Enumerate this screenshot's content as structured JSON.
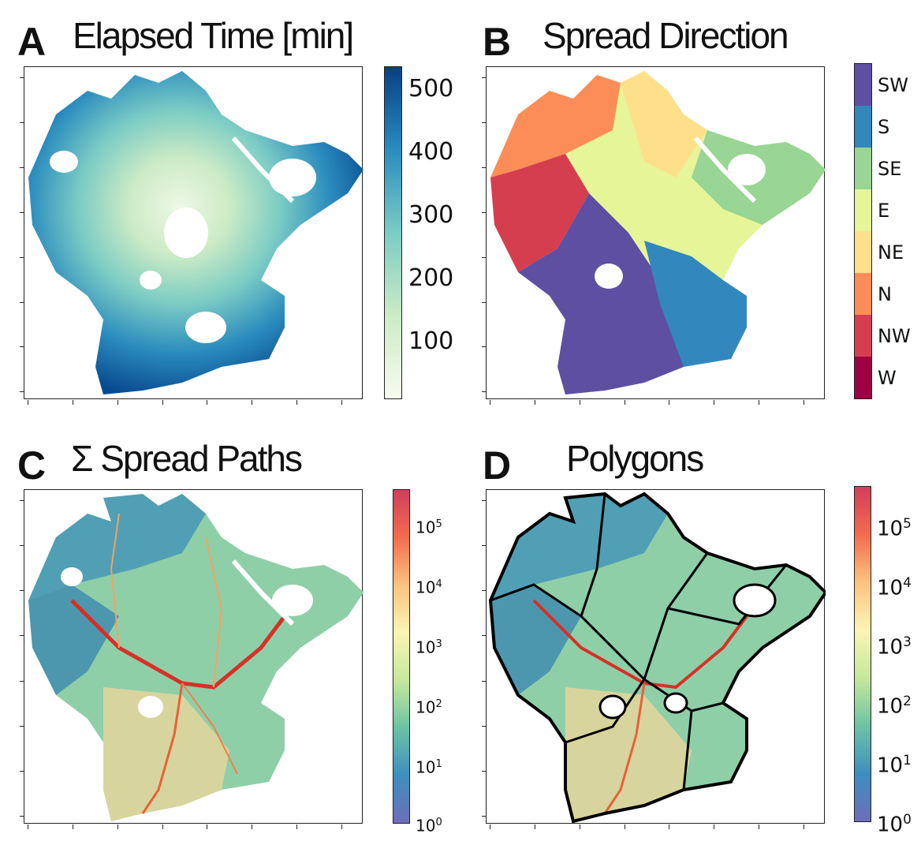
{
  "panels": {
    "A": {
      "letter": "A",
      "title": "Elapsed Time [min]"
    },
    "B": {
      "letter": "B",
      "title": "Spread Direction"
    },
    "C": {
      "letter": "C",
      "title": "Σ Spread Paths"
    },
    "D": {
      "letter": "D",
      "title": "Polygons"
    }
  },
  "chart_data": [
    {
      "panel": "A",
      "type": "heatmap",
      "title": "Elapsed Time [min]",
      "colorbar": {
        "ticks": [
          "100",
          "200",
          "300",
          "400",
          "500"
        ],
        "range": [
          10,
          540
        ],
        "cmap": "GnBu"
      },
      "colors": [
        "#f7fcf0",
        "#ccebc5",
        "#7bccc4",
        "#2b8cbe",
        "#084081"
      ]
    },
    {
      "panel": "B",
      "type": "heatmap",
      "title": "Spread Direction",
      "colorbar": {
        "categories": [
          "SW",
          "S",
          "SE",
          "E",
          "NE",
          "N",
          "NW",
          "W"
        ],
        "colors": [
          "#5e4fa2",
          "#3288bd",
          "#99d594",
          "#e6f598",
          "#fee08b",
          "#fc8d59",
          "#d53e4f",
          "#9e0142"
        ]
      }
    },
    {
      "panel": "C",
      "type": "heatmap",
      "title": "Σ Spread Paths",
      "colorbar": {
        "scale": "log",
        "ticks": [
          "10^0",
          "10^1",
          "10^2",
          "10^3",
          "10^4",
          "10^5"
        ],
        "cmap": "Spectral_r"
      }
    },
    {
      "panel": "D",
      "type": "heatmap",
      "title": "Polygons",
      "colorbar": {
        "scale": "log",
        "ticks": [
          "10^0",
          "10^1",
          "10^2",
          "10^3",
          "10^4",
          "10^5"
        ],
        "cmap": "Spectral_r"
      }
    }
  ]
}
